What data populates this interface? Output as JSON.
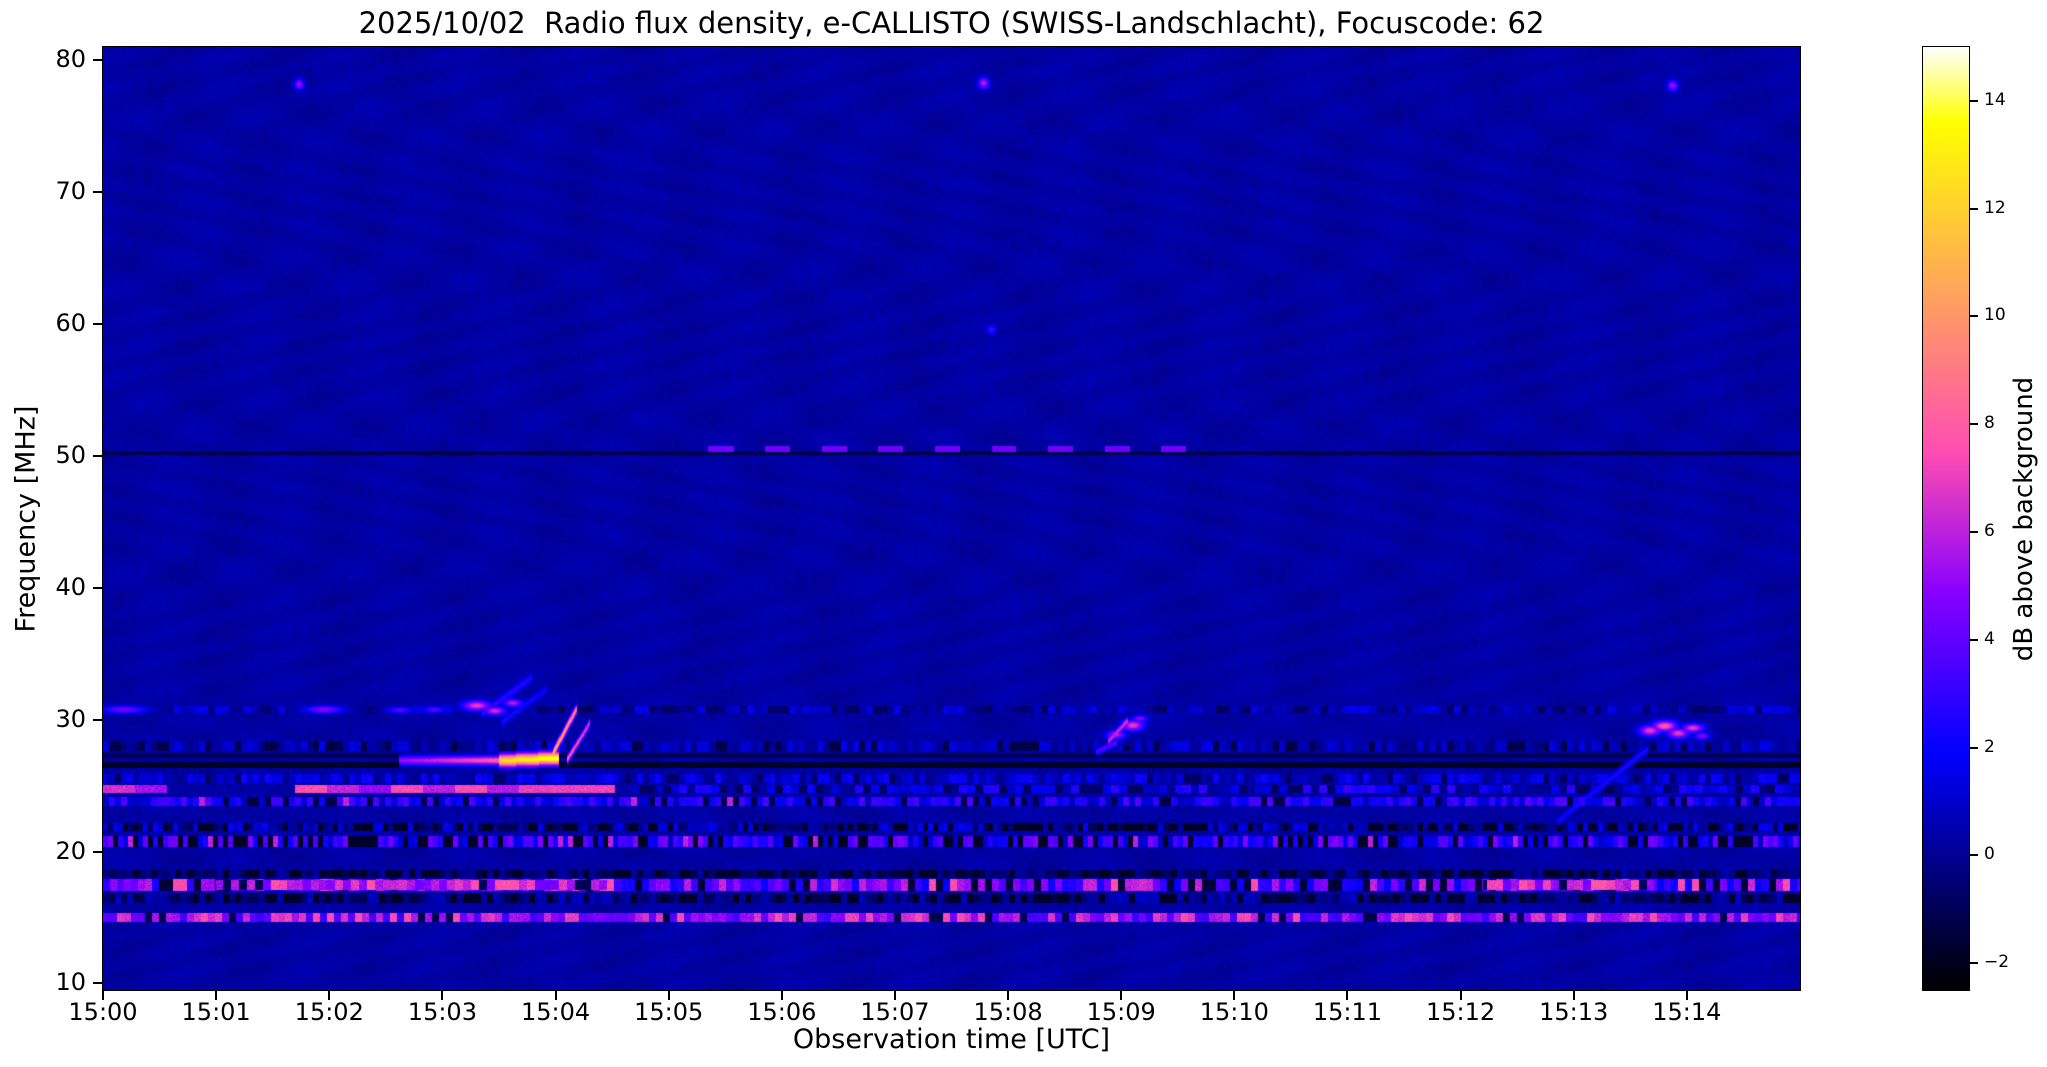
{
  "chart_data": {
    "type": "heatmap",
    "title": "2025/10/02  Radio flux density, e-CALLISTO (SWISS-Landschlacht), Focuscode: 62",
    "xlabel": "Observation time [UTC]",
    "ylabel": "Frequency [MHz]",
    "colorbar_label": "dB above background",
    "colormap": "gnuplot2",
    "x_range_minutes": [
      0,
      15
    ],
    "y_range_mhz": [
      9.5,
      81.0
    ],
    "color_range_db": [
      -2.5,
      15
    ],
    "x_tick_values": [
      0,
      1,
      2,
      3,
      4,
      5,
      6,
      7,
      8,
      9,
      10,
      11,
      12,
      13,
      14
    ],
    "x_tick_labels": [
      "15:00",
      "15:01",
      "15:02",
      "15:03",
      "15:04",
      "15:05",
      "15:06",
      "15:07",
      "15:08",
      "15:09",
      "15:10",
      "15:11",
      "15:12",
      "15:13",
      "15:14"
    ],
    "y_tick_values": [
      10,
      20,
      30,
      40,
      50,
      60,
      70,
      80
    ],
    "y_tick_labels": [
      "10",
      "20",
      "30",
      "40",
      "50",
      "60",
      "70",
      "80"
    ],
    "colorbar_tick_values": [
      -2,
      0,
      2,
      4,
      6,
      8,
      10,
      12,
      14
    ],
    "colorbar_tick_labels": [
      "−2",
      "0",
      "2",
      "4",
      "6",
      "8",
      "10",
      "12",
      "14"
    ],
    "background_db": 0.3,
    "features": [
      {
        "type": "hline",
        "f": 50.25,
        "th": 0.28,
        "t": [
          0,
          15
        ],
        "db": -1.2
      },
      {
        "type": "hline",
        "f": 26.62,
        "th": 0.38,
        "t": [
          0,
          15
        ],
        "db": -1.8
      },
      {
        "type": "hline",
        "f": 27.35,
        "th": 0.3,
        "t": [
          0,
          15
        ],
        "db": -1.1
      },
      {
        "type": "band",
        "id": 1,
        "f": [
          14.7,
          15.35
        ],
        "t": [
          0,
          15
        ],
        "db": 5.2,
        "var": 2.2,
        "p_dark": 0.12,
        "db_dark": -1.2,
        "p_hot": 0.06,
        "db_hot": 7.5,
        "chunk": 7
      },
      {
        "type": "band",
        "id": 2,
        "f": [
          16.15,
          16.8
        ],
        "t": [
          0,
          15
        ],
        "db": -0.2,
        "var": 1.2,
        "p_dark": 0.38,
        "db_dark": -1.8,
        "chunk": 6
      },
      {
        "type": "band",
        "id": 3,
        "f": [
          17.1,
          17.9
        ],
        "t": [
          0,
          15
        ],
        "db": 4.2,
        "var": 2.4,
        "p_dark": 0.22,
        "db_dark": -1.5,
        "p_hot": 0.07,
        "db_hot": 7.5,
        "chunk": 7
      },
      {
        "type": "band",
        "id": 4,
        "f": [
          17.15,
          17.85
        ],
        "t": [
          1.0,
          4.5
        ],
        "db": 6.0,
        "var": 1.8,
        "p_dark": 0.18,
        "db_dark": -1.0,
        "chunk": 8
      },
      {
        "type": "band",
        "id": 5,
        "f": [
          17.15,
          17.85
        ],
        "t": [
          12.2,
          13.7
        ],
        "db": 6.0,
        "var": 1.8,
        "p_dark": 0.15,
        "db_dark": -1.0,
        "chunk": 8
      },
      {
        "type": "band",
        "id": 6,
        "f": [
          18.1,
          18.6
        ],
        "t": [
          0,
          15
        ],
        "db": -0.6,
        "var": 1.0,
        "p_dark": 0.3,
        "db_dark": -1.8,
        "chunk": 6
      },
      {
        "type": "band",
        "id": 7,
        "f": [
          20.4,
          21.2
        ],
        "t": [
          0,
          15
        ],
        "db": 2.8,
        "var": 2.0,
        "p_dark": 0.3,
        "db_dark": -1.8,
        "p_hot": 0.03,
        "db_hot": 6,
        "chunk": 5
      },
      {
        "type": "band",
        "id": 8,
        "f": [
          21.6,
          22.2
        ],
        "t": [
          0,
          15
        ],
        "db": 0.4,
        "var": 1.5,
        "p_dark": 0.35,
        "db_dark": -1.8,
        "chunk": 5
      },
      {
        "type": "band",
        "id": 9,
        "f": [
          23.55,
          24.15
        ],
        "t": [
          0,
          15
        ],
        "db": 2.2,
        "var": 1.6,
        "p_dark": 0.18,
        "db_dark": -1.3,
        "p_hot": 0.02,
        "db_hot": 6,
        "chunk": 6
      },
      {
        "type": "band",
        "id": 10,
        "f": [
          24.55,
          25.05
        ],
        "t": [
          0,
          4.6
        ],
        "db": 6.2,
        "var": 1.5,
        "p_dark": 0.35,
        "db_dark": 0.3,
        "chunk": 32
      },
      {
        "type": "band",
        "id": 11,
        "f": [
          24.55,
          25.05
        ],
        "t": [
          4.6,
          15
        ],
        "db": 1.4,
        "var": 1.6,
        "p_dark": 0.25,
        "db_dark": -0.8,
        "chunk": 8
      },
      {
        "type": "band",
        "id": 12,
        "f": [
          25.3,
          25.9
        ],
        "t": [
          0,
          15
        ],
        "db": 1.0,
        "var": 1.2,
        "p_dark": 0.12,
        "db_dark": -0.8,
        "chunk": 6
      },
      {
        "type": "band",
        "id": 13,
        "f": [
          27.7,
          28.4
        ],
        "t": [
          0,
          15
        ],
        "db": 0.6,
        "var": 1.0,
        "p_dark": 0.18,
        "db_dark": -1.2,
        "chunk": 6
      },
      {
        "type": "band",
        "id": 14,
        "f": [
          30.55,
          31.0
        ],
        "t": [
          0,
          15
        ],
        "db": 0.4,
        "var": 1.3,
        "p_dark": 0.1,
        "db_dark": -0.8,
        "chunk": 7
      },
      {
        "type": "dashes",
        "f": 50.55,
        "th": 0.36,
        "t": [
          5.35,
          9.6
        ],
        "period": 0.5,
        "dash": 0.22,
        "db": 4.3
      },
      {
        "type": "blob",
        "t": 0.18,
        "f": 30.8,
        "st": 0.14,
        "sf": 0.22,
        "db": 4.5
      },
      {
        "type": "blob",
        "t": 1.95,
        "f": 30.8,
        "st": 0.12,
        "sf": 0.22,
        "db": 5
      },
      {
        "type": "blob",
        "t": 2.62,
        "f": 30.75,
        "st": 0.08,
        "sf": 0.18,
        "db": 4
      },
      {
        "type": "blob",
        "t": 2.92,
        "f": 30.8,
        "st": 0.07,
        "sf": 0.18,
        "db": 4
      },
      {
        "type": "streak",
        "p0": [
          2.62,
          26.95
        ],
        "p1": [
          3.5,
          26.95
        ],
        "db": [
          5,
          8
        ],
        "th": 0.3
      },
      {
        "type": "streak",
        "p0": [
          3.5,
          26.92
        ],
        "p1": [
          4.02,
          27.12
        ],
        "db": [
          12,
          14
        ],
        "th": 0.42
      },
      {
        "type": "streak",
        "p0": [
          3.96,
          27.2
        ],
        "p1": [
          4.18,
          30.8
        ],
        "db": [
          11,
          9
        ],
        "th": 0.3
      },
      {
        "type": "streak",
        "p0": [
          4.1,
          27.0
        ],
        "p1": [
          4.3,
          29.8
        ],
        "db": [
          8,
          6.5
        ],
        "th": 0.25
      },
      {
        "type": "streak",
        "p0": [
          3.35,
          30.5
        ],
        "p1": [
          3.78,
          33.2
        ],
        "db": [
          3,
          2.5
        ],
        "th": 0.3
      },
      {
        "type": "streak",
        "p0": [
          3.52,
          29.8
        ],
        "p1": [
          3.92,
          32.4
        ],
        "db": [
          2.5,
          2
        ],
        "th": 0.25
      },
      {
        "type": "blob",
        "t": 3.3,
        "f": 31.1,
        "st": 0.09,
        "sf": 0.28,
        "db": 7
      },
      {
        "type": "blob",
        "t": 3.46,
        "f": 30.7,
        "st": 0.07,
        "sf": 0.24,
        "db": 6.5
      },
      {
        "type": "blob",
        "t": 3.62,
        "f": 31.3,
        "st": 0.06,
        "sf": 0.22,
        "db": 6
      },
      {
        "type": "streak",
        "p0": [
          8.88,
          28.4
        ],
        "p1": [
          9.05,
          29.9
        ],
        "db": [
          6,
          6.5
        ],
        "th": 0.26
      },
      {
        "type": "blob",
        "t": 9.1,
        "f": 29.6,
        "st": 0.07,
        "sf": 0.3,
        "db": 7
      },
      {
        "type": "blob",
        "t": 8.95,
        "f": 28.9,
        "st": 0.06,
        "sf": 0.25,
        "db": 6
      },
      {
        "type": "blob",
        "t": 9.16,
        "f": 30.1,
        "st": 0.05,
        "sf": 0.2,
        "db": 5
      },
      {
        "type": "streak",
        "p0": [
          8.78,
          27.6
        ],
        "p1": [
          8.95,
          28.3
        ],
        "db": [
          3.5,
          4
        ],
        "th": 0.2
      },
      {
        "type": "streak",
        "p0": [
          12.85,
          22.3
        ],
        "p1": [
          13.65,
          27.8
        ],
        "db": [
          2.2,
          2.6
        ],
        "th": 0.22
      },
      {
        "type": "blob",
        "t": 13.67,
        "f": 29.2,
        "st": 0.07,
        "sf": 0.3,
        "db": 7
      },
      {
        "type": "blob",
        "t": 13.8,
        "f": 29.55,
        "st": 0.08,
        "sf": 0.3,
        "db": 8
      },
      {
        "type": "blob",
        "t": 13.92,
        "f": 29.0,
        "st": 0.07,
        "sf": 0.28,
        "db": 7
      },
      {
        "type": "blob",
        "t": 14.05,
        "f": 29.4,
        "st": 0.07,
        "sf": 0.25,
        "db": 7
      },
      {
        "type": "blob",
        "t": 14.13,
        "f": 28.8,
        "st": 0.05,
        "sf": 0.2,
        "db": 5
      },
      {
        "type": "blob",
        "t": 1.73,
        "f": 78.2,
        "st": 0.03,
        "sf": 0.3,
        "db": 5.5
      },
      {
        "type": "blob",
        "t": 7.78,
        "f": 78.3,
        "st": 0.035,
        "sf": 0.32,
        "db": 6
      },
      {
        "type": "blob",
        "t": 13.87,
        "f": 78.1,
        "st": 0.035,
        "sf": 0.3,
        "db": 5.5
      },
      {
        "type": "blob",
        "t": 7.85,
        "f": 59.6,
        "st": 0.03,
        "sf": 0.25,
        "db": 3.5
      }
    ]
  }
}
